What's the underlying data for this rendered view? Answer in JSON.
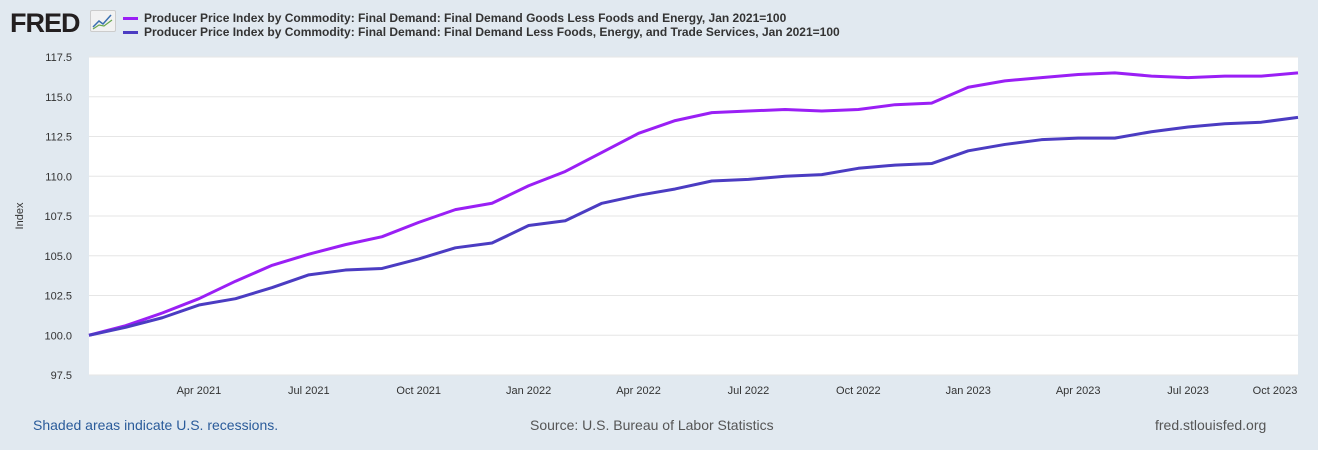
{
  "logo_text": "FRED",
  "colors": {
    "series1": "#9a1ff5",
    "series2": "#4b3cc2",
    "background": "#e1e9f0"
  },
  "footer": {
    "recession_note": "Shaded areas indicate U.S. recessions.",
    "source": "Source: U.S. Bureau of Labor Statistics",
    "site": "fred.stlouisfed.org"
  },
  "chart_data": {
    "type": "line",
    "ylabel": "Index",
    "ylim": [
      97.5,
      117.5
    ],
    "yticks": [
      "97.5",
      "100.0",
      "102.5",
      "105.0",
      "107.5",
      "110.0",
      "112.5",
      "115.0",
      "117.5"
    ],
    "xtick_labels": [
      "Apr 2021",
      "Jul 2021",
      "Oct 2021",
      "Jan 2022",
      "Apr 2022",
      "Jul 2022",
      "Oct 2022",
      "Jan 2023",
      "Apr 2023",
      "Jul 2023",
      "Oct 2023"
    ],
    "x": [
      "2021-01",
      "2021-02",
      "2021-03",
      "2021-04",
      "2021-05",
      "2021-06",
      "2021-07",
      "2021-08",
      "2021-09",
      "2021-10",
      "2021-11",
      "2021-12",
      "2022-01",
      "2022-02",
      "2022-03",
      "2022-04",
      "2022-05",
      "2022-06",
      "2022-07",
      "2022-08",
      "2022-09",
      "2022-10",
      "2022-11",
      "2022-12",
      "2023-01",
      "2023-02",
      "2023-03",
      "2023-04",
      "2023-05",
      "2023-06",
      "2023-07",
      "2023-08",
      "2023-09",
      "2023-10"
    ],
    "grid": true,
    "series": [
      {
        "name": "Producer Price Index by Commodity: Final Demand: Final Demand Goods Less Foods and Energy, Jan 2021=100",
        "values": [
          100.0,
          100.6,
          101.4,
          102.3,
          103.4,
          104.4,
          105.1,
          105.7,
          106.2,
          107.1,
          107.9,
          108.3,
          109.4,
          110.3,
          111.5,
          112.7,
          113.5,
          114.0,
          114.1,
          114.2,
          114.1,
          114.2,
          114.5,
          114.6,
          115.6,
          116.0,
          116.2,
          116.4,
          116.5,
          116.3,
          116.2,
          116.3,
          116.3,
          116.5
        ]
      },
      {
        "name": "Producer Price Index by Commodity: Final Demand: Final Demand Less Foods, Energy, and Trade Services, Jan 2021=100",
        "values": [
          100.0,
          100.5,
          101.1,
          101.9,
          102.3,
          103.0,
          103.8,
          104.1,
          104.2,
          104.8,
          105.5,
          105.8,
          106.9,
          107.2,
          108.3,
          108.8,
          109.2,
          109.7,
          109.8,
          110.0,
          110.1,
          110.5,
          110.7,
          110.8,
          111.6,
          112.0,
          112.3,
          112.4,
          112.4,
          112.8,
          113.1,
          113.3,
          113.4,
          113.7
        ]
      }
    ]
  }
}
